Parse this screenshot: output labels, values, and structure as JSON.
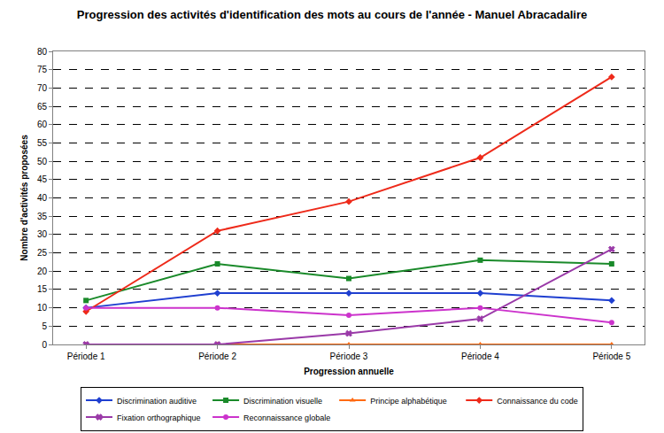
{
  "chart_data": {
    "type": "line",
    "title": "Progression des activités d'identification des mots au cours de l'année - Manuel Abracadalire",
    "x_label": "Progression annuelle",
    "y_label": "Nombre d'activités proposées",
    "categories": [
      "Période 1",
      "Période 2",
      "Période 3",
      "Période 4",
      "Période 5"
    ],
    "series": [
      {
        "name": "Discrimination auditive",
        "color": "#1f3fd0",
        "marker": "diamond",
        "line_style": "solid",
        "values": [
          10,
          14,
          14,
          14,
          12
        ]
      },
      {
        "name": "Discrimination visuelle",
        "color": "#1a8a2a",
        "marker": "square",
        "line_style": "solid",
        "values": [
          12,
          22,
          18,
          23,
          22
        ]
      },
      {
        "name": "Principe alphabétique",
        "color": "#ff6a13",
        "marker": "triangle-up",
        "line_style": "solid",
        "values": [
          0,
          0,
          0,
          0,
          0
        ]
      },
      {
        "name": "Connaissance du code",
        "color": "#ee2a1a",
        "marker": "diamond",
        "line_style": "solid",
        "values": [
          9,
          31,
          39,
          51,
          73
        ]
      },
      {
        "name": "Fixation orthographique",
        "color": "#9a3aa8",
        "marker": "x",
        "line_style": "solid",
        "values": [
          0,
          0,
          3,
          7,
          26
        ]
      },
      {
        "name": "Reconnaissance globale",
        "color": "#cc33cc",
        "marker": "circle",
        "line_style": "solid",
        "values": [
          10,
          10,
          8,
          10,
          6
        ]
      }
    ],
    "ylim": [
      0,
      80
    ],
    "yticks": [
      0,
      5,
      10,
      15,
      20,
      25,
      30,
      35,
      40,
      45,
      50,
      55,
      60,
      65,
      70,
      75,
      80
    ],
    "grid": true,
    "legend": "bottom"
  }
}
